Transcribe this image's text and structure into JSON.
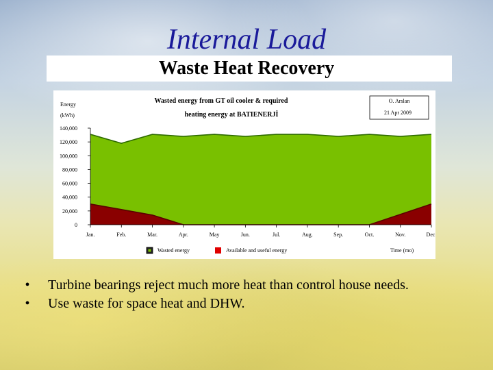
{
  "slide": {
    "title": "Internal Load",
    "subtitle": "Waste Heat Recovery",
    "bullets": [
      "Turbine bearings reject much more heat than control house needs.",
      "Use waste for space heat and DHW."
    ]
  },
  "chart_data": {
    "type": "area",
    "title_line1": "Wasted energy from GT oil cooler & required",
    "title_line2": "heating energy at BATIENERJİ",
    "ylabel_line1": "Energy",
    "ylabel_line2": "(kWh)",
    "xlabel": "Time (mo)",
    "author": "O. Arslan",
    "date": "21 Apr 2009",
    "ylim": [
      0,
      140000
    ],
    "y_ticks": [
      "0",
      "20,000",
      "40,000",
      "60,000",
      "80,000",
      "100,000",
      "120,000",
      "140,000"
    ],
    "categories": [
      "Jan.",
      "Feb.",
      "Mar.",
      "Apr.",
      "May",
      "Jun.",
      "Jul.",
      "Aug.",
      "Sep.",
      "Oct.",
      "Nov.",
      "Dec."
    ],
    "series": [
      {
        "name": "Wasted energy",
        "color": "#79c000",
        "values": [
          131000,
          118000,
          131000,
          128000,
          131000,
          128000,
          131000,
          131000,
          128000,
          131000,
          128000,
          131000
        ]
      },
      {
        "name": "Available and useful energy",
        "color": "#8a0000",
        "values": [
          30000,
          22000,
          14000,
          0,
          0,
          0,
          0,
          0,
          0,
          0,
          15000,
          30000
        ]
      }
    ],
    "legend_placement": "bottom",
    "grid": false
  }
}
